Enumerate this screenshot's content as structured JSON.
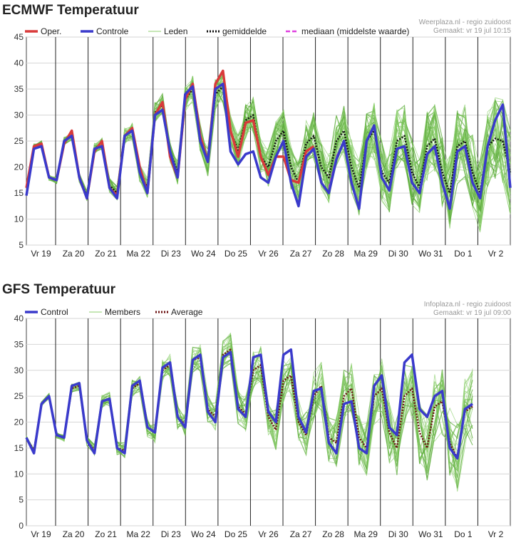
{
  "charts": [
    {
      "title": "ECMWF Temperatuur",
      "credit_line1": "Weerplaza.nl - regio zuidoost",
      "credit_line2": "Gemaakt: vr 19 jul 10:15",
      "legend": [
        {
          "label": "Oper.",
          "color": "#d93a3a",
          "style": "solid-thick"
        },
        {
          "label": "Controle",
          "color": "#3a3acb",
          "style": "solid-thick"
        },
        {
          "label": "Leden",
          "color": "#8ccf6e",
          "style": "thin"
        },
        {
          "label": "gemiddelde",
          "color": "#111111",
          "style": "dotted"
        },
        {
          "label": "mediaan (middelste waarde)",
          "color": "#e040e0",
          "style": "dashed"
        }
      ]
    },
    {
      "title": "GFS Temperatuur",
      "credit_line1": "Infoplaza.nl - regio zuidoost",
      "credit_line2": "Gemaakt: vr 19 jul 09:00",
      "legend": [
        {
          "label": "Control",
          "color": "#3a3acb",
          "style": "solid-thick"
        },
        {
          "label": "Members",
          "color": "#8ccf6e",
          "style": "thin"
        },
        {
          "label": "Average",
          "color": "#6b1010",
          "style": "dotted"
        }
      ]
    }
  ],
  "chart_data": [
    {
      "type": "line",
      "title": "ECMWF Temperatuur",
      "day_labels": [
        "Vr 19",
        "Za 20",
        "Zo 21",
        "Ma 22",
        "Di 23",
        "Wo 24",
        "Do 25",
        "Vr 26",
        "Za 27",
        "Zo 28",
        "Ma 29",
        "Di 30",
        "Wo 31",
        "Do 1",
        "Vr 2"
      ],
      "ylim": [
        5,
        45
      ],
      "yticks": [
        5,
        10,
        15,
        20,
        25,
        30,
        35,
        40,
        45
      ],
      "grid": true,
      "legend_position": "top",
      "series": [
        {
          "name": "Oper.",
          "color": "#d93a3a",
          "values": [
            16,
            24,
            24.5,
            18,
            17.5,
            24.5,
            27,
            18,
            14,
            23,
            25,
            16,
            14.5,
            26,
            27.5,
            20,
            15,
            30,
            32.5,
            22,
            18,
            33,
            36,
            26,
            21,
            36,
            38.5,
            27,
            22,
            28.5,
            29,
            22,
            18.5,
            22,
            22,
            17.5,
            17,
            23,
            24,
            null,
            null,
            null,
            null,
            null,
            null,
            null,
            null,
            null,
            null,
            null,
            null,
            null,
            null,
            null,
            null,
            null,
            null,
            null,
            null,
            null,
            null
          ]
        },
        {
          "name": "Controle",
          "color": "#3a3acb",
          "values": [
            14.5,
            23.5,
            24,
            18,
            17.5,
            25,
            26,
            18,
            14,
            23.5,
            24,
            16,
            14,
            26,
            27,
            19,
            15,
            30,
            31,
            23,
            18,
            34,
            35.5,
            25,
            21,
            35,
            36,
            23,
            20.5,
            22.5,
            23,
            18,
            17,
            22,
            25,
            17,
            12.5,
            22,
            23.5,
            17,
            15,
            21.5,
            25,
            17,
            12,
            25,
            28,
            18,
            15.5,
            23.5,
            24,
            17,
            15,
            22.5,
            24,
            17,
            12,
            23,
            24,
            17,
            14,
            24,
            29,
            32,
            16
          ]
        },
        {
          "name": "gemiddelde",
          "color": "#111111",
          "values": [
            16,
            24,
            24.5,
            18,
            17.5,
            25,
            26,
            18,
            14.5,
            23.5,
            24.5,
            16.5,
            15,
            26,
            27,
            19,
            16,
            30.5,
            32,
            23,
            19,
            33,
            35,
            25.5,
            21,
            34,
            35.5,
            27,
            23,
            29,
            30,
            22,
            20,
            25,
            27,
            20,
            17,
            24.5,
            26,
            20,
            18,
            25,
            27,
            20,
            16,
            25,
            27,
            19,
            17,
            25,
            26,
            19,
            16,
            24,
            25.5,
            19,
            15,
            24,
            25,
            19,
            15,
            24,
            25.5,
            25,
            19
          ]
        },
        {
          "name": "mediaan (middelste waarde)",
          "color": "#e040e0",
          "values": [
            null,
            null,
            null,
            null,
            null,
            null,
            null,
            null,
            null,
            null,
            null,
            null,
            null,
            null,
            null,
            null,
            null,
            null,
            null,
            null,
            null,
            null,
            null,
            null,
            null,
            null,
            null,
            null,
            null,
            null,
            null,
            null,
            null,
            null,
            null,
            null,
            null,
            null,
            null,
            null,
            16,
            22,
            25,
            null,
            null,
            null,
            null,
            null,
            null,
            null,
            null,
            null,
            null,
            null,
            null,
            null,
            null,
            null,
            null,
            null,
            null,
            null,
            null,
            null,
            null
          ]
        }
      ]
    },
    {
      "type": "line",
      "title": "GFS Temperatuur",
      "day_labels": [
        "Vr 19",
        "Za 20",
        "Zo 21",
        "Ma 22",
        "Di 23",
        "Wo 24",
        "Do 25",
        "Vr 26",
        "Za 27",
        "Zo 28",
        "Ma 29",
        "Di 30",
        "Wo 31",
        "Do 1",
        "Vr 2"
      ],
      "ylim": [
        0,
        40
      ],
      "yticks": [
        0,
        5,
        10,
        15,
        20,
        25,
        30,
        35,
        40
      ],
      "grid": true,
      "legend_position": "top",
      "series": [
        {
          "name": "Control",
          "color": "#3a3acb",
          "values": [
            17,
            14,
            23.5,
            25,
            17.5,
            17,
            27,
            27.5,
            16.5,
            14,
            24,
            24.5,
            15,
            14,
            27,
            28,
            19,
            18,
            30.5,
            31.5,
            21,
            19,
            32,
            33,
            22,
            20,
            32.5,
            33.5,
            22.5,
            21,
            32.5,
            33,
            22,
            20,
            33,
            34,
            21,
            18,
            26,
            26.5,
            16,
            14,
            23.5,
            24,
            15,
            14,
            27,
            29,
            19,
            17.5,
            31.5,
            33,
            22.5,
            21,
            25,
            26,
            15,
            13,
            22.5,
            23.5
          ]
        },
        {
          "name": "Average",
          "color": "#6b1010",
          "values": [
            17,
            14.5,
            23.5,
            25,
            17.5,
            17,
            26.5,
            27,
            16.5,
            14.5,
            24,
            24.5,
            15,
            14.5,
            26.5,
            27.5,
            19,
            18,
            30,
            31,
            21,
            19.5,
            32,
            32.5,
            22.5,
            21,
            33,
            34,
            23,
            21.5,
            30,
            31,
            21,
            18.5,
            28,
            29,
            20,
            17.5,
            25,
            27,
            17,
            16,
            25,
            26.5,
            17,
            15,
            25,
            26.5,
            18,
            15,
            25,
            26.5,
            18,
            15,
            23,
            24,
            16,
            13,
            22,
            23
          ]
        }
      ]
    }
  ]
}
